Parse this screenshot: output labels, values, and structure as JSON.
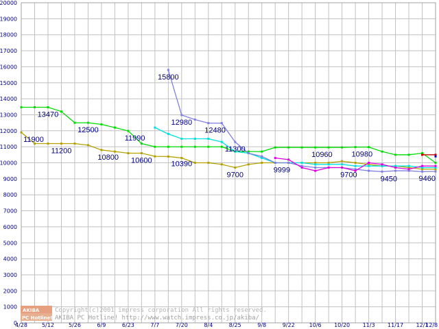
{
  "chart_data": {
    "type": "line",
    "grid": true,
    "ylim": [
      0,
      20000
    ],
    "yticks": [
      0,
      1000,
      2000,
      3000,
      4000,
      5000,
      6000,
      7000,
      8000,
      9000,
      10000,
      11000,
      12000,
      13000,
      14000,
      15000,
      16000,
      17000,
      18000,
      19000,
      20000
    ],
    "x_tick_labels": [
      "4/28",
      "5/12",
      "5/26",
      "6/9",
      "6/23",
      "7/7",
      "7/20",
      "8/4",
      "8/25",
      "9/8",
      "9/22",
      "10/6",
      "10/20",
      "11/3",
      "11/17",
      "12/1",
      "12/8"
    ],
    "x_tick_positions": [
      0,
      2,
      4,
      6,
      8,
      10,
      12,
      14,
      16,
      18,
      20,
      22,
      24,
      26,
      28,
      30,
      30.7
    ],
    "series": [
      {
        "color": "#00dc00",
        "x": [
          0,
          1,
          2,
          3,
          4,
          5,
          6,
          7,
          8,
          9,
          10,
          11,
          12,
          13,
          14,
          15,
          16,
          17,
          18,
          19,
          20,
          21,
          22,
          23,
          24,
          25,
          26,
          27,
          28,
          29,
          30,
          31
        ],
        "y": [
          13470,
          13470,
          13470,
          13200,
          12500,
          12500,
          12400,
          12200,
          11990,
          11200,
          11000,
          11000,
          11000,
          11000,
          11000,
          11000,
          10700,
          10700,
          10700,
          10960,
          10960,
          10960,
          10960,
          10960,
          10960,
          10980,
          10980,
          10700,
          10500,
          10500,
          10600,
          10000
        ]
      },
      {
        "color": "#b4a000",
        "x": [
          0,
          1,
          2,
          3,
          4,
          5,
          6,
          7,
          8,
          9,
          10,
          11,
          12,
          13,
          14,
          15,
          16,
          17,
          18,
          19,
          20,
          21,
          22,
          23,
          24,
          25,
          26,
          27,
          28,
          29,
          30,
          31
        ],
        "y": [
          11900,
          11200,
          11200,
          11200,
          11200,
          11100,
          10800,
          10700,
          10600,
          10600,
          10400,
          10390,
          10300,
          10000,
          10000,
          9900,
          9700,
          9900,
          10000,
          10000,
          10000,
          10000,
          10000,
          10000,
          10100,
          10000,
          9900,
          9800,
          9800,
          9700,
          9600,
          9600
        ]
      },
      {
        "color": "#00e0e0",
        "x": [
          10,
          11,
          12,
          13,
          14,
          15,
          16,
          17,
          18,
          19,
          20,
          21,
          22,
          23,
          24,
          25,
          26,
          27,
          28,
          29,
          30,
          31
        ],
        "y": [
          12200,
          11800,
          11500,
          11500,
          11500,
          11300,
          10700,
          10600,
          10300,
          10000,
          10000,
          10000,
          9900,
          9900,
          9900,
          9800,
          9800,
          9800,
          9800,
          9800,
          9700,
          9700
        ]
      },
      {
        "color": "#8080e0",
        "x": [
          11,
          12,
          13,
          14,
          15,
          16,
          17,
          18,
          19,
          20,
          21,
          22,
          23,
          24,
          25,
          26,
          27,
          28,
          29,
          30,
          31
        ],
        "y": [
          15800,
          12980,
          12700,
          12480,
          12480,
          11300,
          10600,
          10400,
          10000,
          10000,
          9800,
          9700,
          9700,
          9700,
          9600,
          9500,
          9450,
          9500,
          9500,
          9450,
          9460
        ]
      },
      {
        "color": "#e000e0",
        "x": [
          19,
          20,
          21,
          22,
          23,
          24,
          25,
          26,
          27,
          28,
          29,
          30,
          31
        ],
        "y": [
          10300,
          10200,
          9700,
          9500,
          9700,
          9700,
          9500,
          10000,
          9900,
          9700,
          9600,
          9800,
          9800
        ]
      },
      {
        "color": "#c80000",
        "x": [
          30,
          31
        ],
        "y": [
          10500,
          10500
        ]
      },
      {
        "color": "#0000c0",
        "x": [
          31
        ],
        "y": [
          10400
        ]
      }
    ],
    "annotations": [
      {
        "text": "13470",
        "x": 2,
        "y": 13470
      },
      {
        "text": "11900",
        "x": 0,
        "y": 11900
      },
      {
        "text": "11200",
        "x": 3,
        "y": 11200
      },
      {
        "text": "12500",
        "x": 5,
        "y": 12500
      },
      {
        "text": "10800",
        "x": 6.5,
        "y": 10800
      },
      {
        "text": "11990",
        "x": 8.5,
        "y": 11990
      },
      {
        "text": "10600",
        "x": 9,
        "y": 10600
      },
      {
        "text": "15800",
        "x": 11,
        "y": 15800
      },
      {
        "text": "12980",
        "x": 12,
        "y": 12980
      },
      {
        "text": "10390",
        "x": 12,
        "y": 10390
      },
      {
        "text": "12480",
        "x": 14.5,
        "y": 12480
      },
      {
        "text": "11300",
        "x": 16,
        "y": 11300
      },
      {
        "text": "9700",
        "x": 16,
        "y": 9700
      },
      {
        "text": "9999",
        "x": 19.5,
        "y": 9999
      },
      {
        "text": "10960",
        "x": 22.5,
        "y": 10960
      },
      {
        "text": "10980",
        "x": 25.5,
        "y": 10980
      },
      {
        "text": "9700",
        "x": 24.5,
        "y": 9700
      },
      {
        "text": "9450",
        "x": 27.5,
        "y": 9450
      },
      {
        "text": "9460",
        "x": 31,
        "y": 9460
      }
    ]
  },
  "watermark": {
    "logo_top": "AKIBA",
    "logo_bottom": "PC Hotline!",
    "line1": "Copyright(c)2001 impress corporation All rights reserved.",
    "line2": "AKIBA PC Hotline!  http://www.watch.impress.co.jp/akiba/"
  },
  "colors": {
    "grid": "#c0c0c0",
    "tick_text": "#000080",
    "label_text": "#000080"
  }
}
